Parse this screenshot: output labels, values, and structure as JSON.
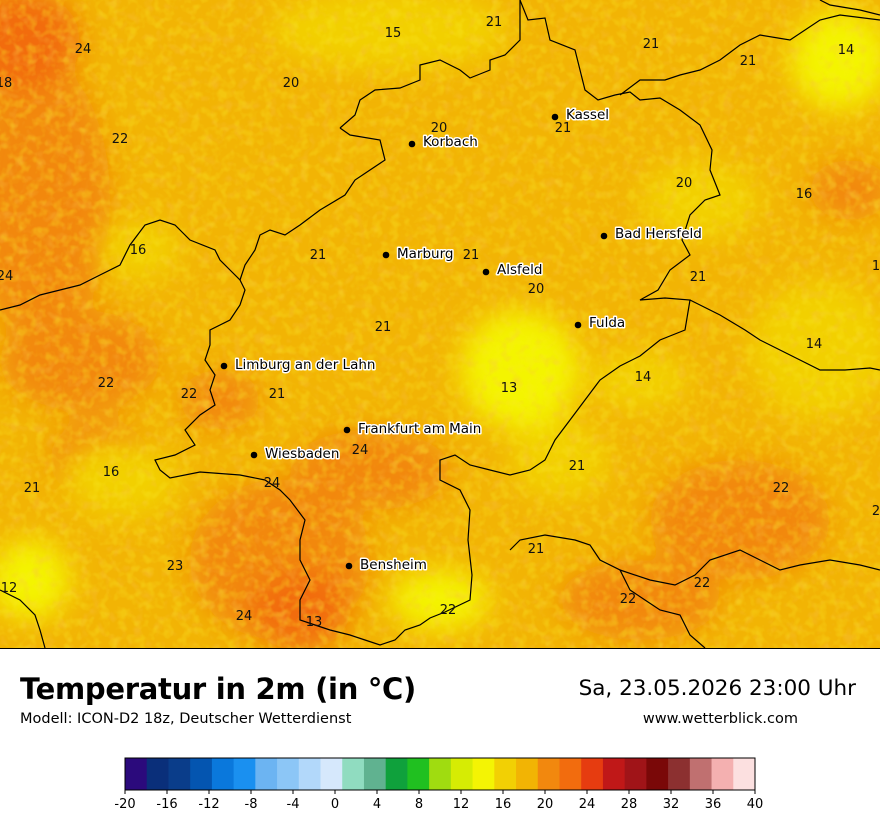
{
  "title": "Temperatur in 2m (in °C)",
  "subtitle": "Modell: ICON-D2 18z, Deutscher Wetterdienst",
  "datetime": "Sa, 23.05.2026 23:00 Uhr",
  "website": "www.wetterblick.com",
  "cities": [
    {
      "name": "Kassel"
    },
    {
      "name": "Korbach"
    },
    {
      "name": "Bad Hersfeld"
    },
    {
      "name": "Marburg"
    },
    {
      "name": "Alsfeld"
    },
    {
      "name": "Fulda"
    },
    {
      "name": "Limburg an der Lahn"
    },
    {
      "name": "Frankfurt am Main"
    },
    {
      "name": "Wiesbaden"
    },
    {
      "name": "Bensheim"
    }
  ],
  "temperature_values": [
    "21",
    "15",
    "21",
    "14",
    "24",
    "18",
    "20",
    "20",
    "21",
    "21",
    "22",
    "20",
    "16",
    "16",
    "24",
    "21",
    "21",
    "20",
    "1",
    "21",
    "21",
    "14",
    "13",
    "22",
    "22",
    "14",
    "21",
    "16",
    "24",
    "24",
    "21",
    "22",
    "2",
    "21",
    "21",
    "12",
    "23",
    "24",
    "13",
    "22",
    "22",
    "22"
  ],
  "legend": {
    "ticks": [
      "-20",
      "-16",
      "-12",
      "-8",
      "-4",
      "0",
      "4",
      "8",
      "12",
      "16",
      "20",
      "24",
      "28",
      "32",
      "36",
      "40"
    ],
    "colors": [
      "#2b0a7c",
      "#0a2f7a",
      "#0a3d8a",
      "#0455b0",
      "#0a78dc",
      "#1a90f0",
      "#6cb4f2",
      "#8cc6f6",
      "#b2d8fa",
      "#d6e8fc",
      "#90dcc0",
      "#60b290",
      "#0fa13c",
      "#20c020",
      "#a0dc10",
      "#d6ec04",
      "#f4f404",
      "#f2d004",
      "#f2b404",
      "#f2880e",
      "#f26c0e",
      "#e63c10",
      "#c01818",
      "#a01418",
      "#7a0808",
      "#8c3030",
      "#c07070",
      "#f4b0b0",
      "#fce0e0"
    ]
  },
  "map_colors": {
    "base": "#f2b404",
    "warm": "#f2880e",
    "cool": "#f2d004",
    "coolest": "#f4f404",
    "green": "#d6ec04"
  }
}
